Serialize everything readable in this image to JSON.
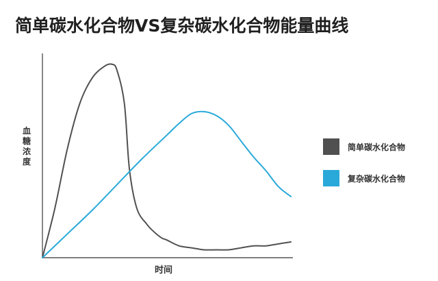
{
  "chart_data": {
    "type": "line",
    "title": "简单碳水化合物VS复杂碳水化合物能量曲线",
    "xlabel": "时间",
    "ylabel": "血糖浓度",
    "xlim": [
      0,
      100
    ],
    "ylim": [
      0,
      100
    ],
    "x_ticks": false,
    "y_ticks": false,
    "grid": false,
    "legend_position": "right",
    "series": [
      {
        "name": "简单碳水化合物",
        "color": "#505050",
        "x": [
          0,
          5,
          10,
          15,
          20,
          25,
          28,
          30,
          33,
          35,
          38,
          42,
          45,
          48,
          50,
          55,
          60,
          65,
          70,
          75,
          80,
          85,
          90,
          95,
          100
        ],
        "y": [
          0,
          25,
          55,
          78,
          91,
          97,
          98,
          95,
          78,
          45,
          25,
          17,
          13,
          10,
          9,
          6,
          5,
          4,
          4,
          4,
          5,
          6,
          6,
          7,
          8
        ]
      },
      {
        "name": "复杂碳水化合物",
        "color": "#29a9d9",
        "x": [
          0,
          10,
          20,
          30,
          40,
          50,
          55,
          60,
          65,
          70,
          75,
          80,
          85,
          90,
          95,
          100
        ],
        "y": [
          0,
          12,
          24,
          37,
          50,
          62,
          68,
          73,
          74,
          72,
          67,
          59,
          51,
          44,
          36,
          31
        ]
      }
    ]
  }
}
